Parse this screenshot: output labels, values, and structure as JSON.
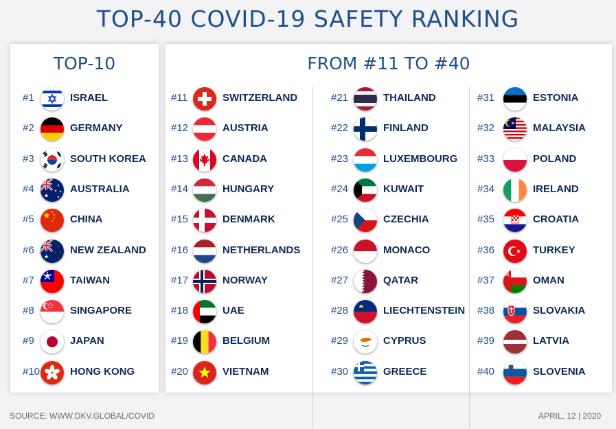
{
  "header": {
    "title": "TOP-40 COVID-19 SAFETY RANKING"
  },
  "left_panel": {
    "heading": "TOP-10"
  },
  "right_panel": {
    "heading": "FROM #11 TO #40"
  },
  "rankings": [
    {
      "rank": "#1",
      "country": "ISRAEL",
      "flag": "israel-flag-icon"
    },
    {
      "rank": "#2",
      "country": "GERMANY",
      "flag": "germany-flag-icon"
    },
    {
      "rank": "#3",
      "country": "SOUTH KOREA",
      "flag": "south-korea-flag-icon"
    },
    {
      "rank": "#4",
      "country": "AUSTRALIA",
      "flag": "australia-flag-icon"
    },
    {
      "rank": "#5",
      "country": "CHINA",
      "flag": "china-flag-icon"
    },
    {
      "rank": "#6",
      "country": "NEW ZEALAND",
      "flag": "new-zealand-flag-icon"
    },
    {
      "rank": "#7",
      "country": "TAIWAN",
      "flag": "taiwan-flag-icon"
    },
    {
      "rank": "#8",
      "country": "SINGAPORE",
      "flag": "singapore-flag-icon"
    },
    {
      "rank": "#9",
      "country": "JAPAN",
      "flag": "japan-flag-icon"
    },
    {
      "rank": "#10",
      "country": "HONG KONG",
      "flag": "hong-kong-flag-icon"
    },
    {
      "rank": "#11",
      "country": "SWITZERLAND",
      "flag": "switzerland-flag-icon"
    },
    {
      "rank": "#12",
      "country": "AUSTRIA",
      "flag": "austria-flag-icon"
    },
    {
      "rank": "#13",
      "country": "CANADA",
      "flag": "canada-flag-icon"
    },
    {
      "rank": "#14",
      "country": "HUNGARY",
      "flag": "hungary-flag-icon"
    },
    {
      "rank": "#15",
      "country": "DENMARK",
      "flag": "denmark-flag-icon"
    },
    {
      "rank": "#16",
      "country": "NETHERLANDS",
      "flag": "netherlands-flag-icon"
    },
    {
      "rank": "#17",
      "country": "NORWAY",
      "flag": "norway-flag-icon"
    },
    {
      "rank": "#18",
      "country": "UAE",
      "flag": "uae-flag-icon"
    },
    {
      "rank": "#19",
      "country": "BELGIUM",
      "flag": "belgium-flag-icon"
    },
    {
      "rank": "#20",
      "country": "VIETNAM",
      "flag": "vietnam-flag-icon"
    },
    {
      "rank": "#21",
      "country": "THAILAND",
      "flag": "thailand-flag-icon"
    },
    {
      "rank": "#22",
      "country": "FINLAND",
      "flag": "finland-flag-icon"
    },
    {
      "rank": "#23",
      "country": "LUXEMBOURG",
      "flag": "luxembourg-flag-icon"
    },
    {
      "rank": "#24",
      "country": "KUWAIT",
      "flag": "kuwait-flag-icon"
    },
    {
      "rank": "#25",
      "country": "CZECHIA",
      "flag": "czechia-flag-icon"
    },
    {
      "rank": "#26",
      "country": "MONACO",
      "flag": "monaco-flag-icon"
    },
    {
      "rank": "#27",
      "country": "QATAR",
      "flag": "qatar-flag-icon"
    },
    {
      "rank": "#28",
      "country": "LIECHTENSTEIN",
      "flag": "liechtenstein-flag-icon"
    },
    {
      "rank": "#29",
      "country": "CYPRUS",
      "flag": "cyprus-flag-icon"
    },
    {
      "rank": "#30",
      "country": "GREECE",
      "flag": "greece-flag-icon"
    },
    {
      "rank": "#31",
      "country": "ESTONIA",
      "flag": "estonia-flag-icon"
    },
    {
      "rank": "#32",
      "country": "MALAYSIA",
      "flag": "malaysia-flag-icon"
    },
    {
      "rank": "#33",
      "country": "POLAND",
      "flag": "poland-flag-icon"
    },
    {
      "rank": "#34",
      "country": "IRELAND",
      "flag": "ireland-flag-icon"
    },
    {
      "rank": "#35",
      "country": "CROATIA",
      "flag": "croatia-flag-icon"
    },
    {
      "rank": "#36",
      "country": "TURKEY",
      "flag": "turkey-flag-icon"
    },
    {
      "rank": "#37",
      "country": "OMAN",
      "flag": "oman-flag-icon"
    },
    {
      "rank": "#38",
      "country": "SLOVAKIA",
      "flag": "slovakia-flag-icon"
    },
    {
      "rank": "#39",
      "country": "LATVIA",
      "flag": "latvia-flag-icon"
    },
    {
      "rank": "#40",
      "country": "SLOVENIA",
      "flag": "slovenia-flag-icon"
    }
  ],
  "footer": {
    "source": "SOURCE: WWW.DKV.GLOBAL/COVID",
    "date": "APRIL, 12 | 2020"
  }
}
